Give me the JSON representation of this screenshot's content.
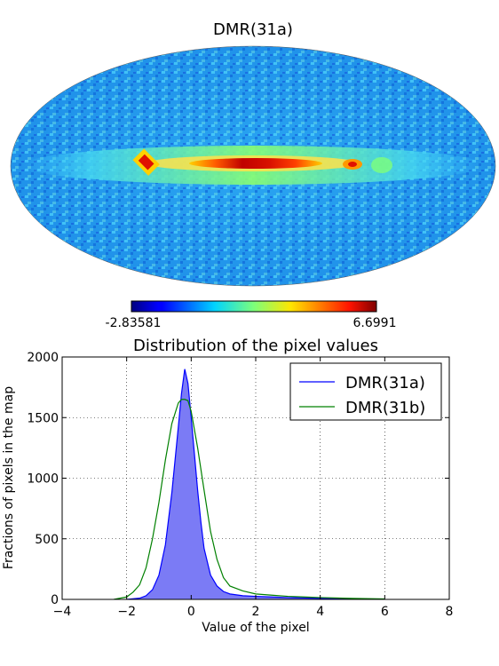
{
  "map": {
    "title": "DMR(31a)",
    "colorbar_min": "-2.83581",
    "colorbar_max": "6.6991",
    "colormap": "jet"
  },
  "chart_data": {
    "type": "area",
    "title": "Distribution of the pixel values",
    "xlabel": "Value of the pixel",
    "ylabel": "Fractions of pixels in the map",
    "xlim": [
      -4,
      8
    ],
    "ylim": [
      0,
      2000
    ],
    "xticks": [
      "−4",
      "−2",
      "0",
      "2",
      "4",
      "6",
      "8"
    ],
    "yticks": [
      "0",
      "500",
      "1000",
      "1500",
      "2000"
    ],
    "grid": true,
    "legend_position": "top-right",
    "series": [
      {
        "name": "DMR(31a)",
        "color": "#0000ff",
        "fill": "#7b7bf5",
        "filled": true,
        "x": [
          -2.0,
          -1.6,
          -1.4,
          -1.2,
          -1.0,
          -0.8,
          -0.6,
          -0.4,
          -0.3,
          -0.2,
          -0.1,
          0.0,
          0.1,
          0.2,
          0.3,
          0.4,
          0.6,
          0.8,
          1.0,
          1.2,
          1.6,
          2.0,
          2.5,
          3.0,
          3.5,
          4.0,
          5.0,
          6.0
        ],
        "y": [
          0,
          10,
          30,
          80,
          200,
          450,
          880,
          1420,
          1700,
          1900,
          1780,
          1500,
          1200,
          900,
          640,
          420,
          200,
          110,
          65,
          45,
          30,
          25,
          20,
          15,
          12,
          8,
          4,
          2
        ]
      },
      {
        "name": "DMR(31b)",
        "color": "#008000",
        "filled": false,
        "x": [
          -2.4,
          -2.0,
          -1.8,
          -1.6,
          -1.4,
          -1.2,
          -1.0,
          -0.8,
          -0.6,
          -0.4,
          -0.3,
          -0.2,
          -0.1,
          0.0,
          0.2,
          0.4,
          0.6,
          0.8,
          1.0,
          1.2,
          1.6,
          2.0,
          2.5,
          3.0,
          3.5,
          4.0,
          5.0,
          6.0
        ],
        "y": [
          0,
          20,
          60,
          120,
          260,
          500,
          800,
          1150,
          1450,
          1620,
          1650,
          1650,
          1640,
          1550,
          1250,
          900,
          560,
          330,
          180,
          110,
          70,
          45,
          35,
          25,
          20,
          15,
          8,
          4
        ]
      }
    ]
  }
}
